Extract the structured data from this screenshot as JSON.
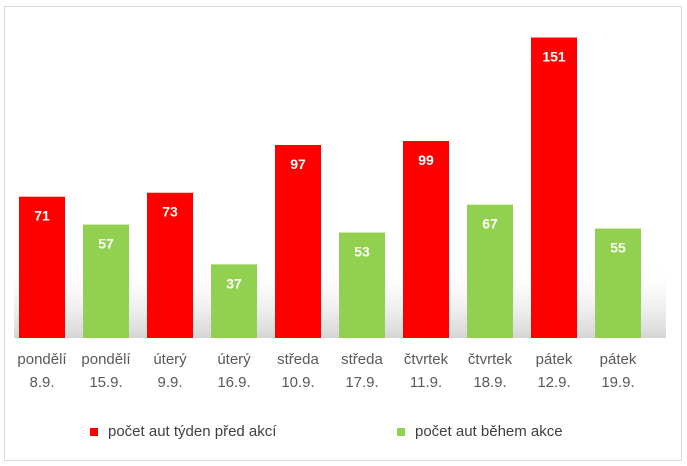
{
  "chart_data": {
    "type": "bar",
    "categories": [
      [
        "pondělí",
        "8.9."
      ],
      [
        "pondělí",
        "15.9."
      ],
      [
        "úterý",
        "9.9."
      ],
      [
        "úterý",
        "16.9."
      ],
      [
        "středa",
        "10.9."
      ],
      [
        "středa",
        "17.9."
      ],
      [
        "čtvrtek",
        "11.9."
      ],
      [
        "čtvrtek",
        "18.9."
      ],
      [
        "pátek",
        "12.9."
      ],
      [
        "pátek",
        "19.9."
      ]
    ],
    "values": [
      71,
      57,
      73,
      37,
      97,
      53,
      99,
      67,
      151,
      55
    ],
    "bar_series": [
      0,
      1,
      0,
      1,
      0,
      1,
      0,
      1,
      0,
      1
    ],
    "series": [
      {
        "name": "počet aut týden před akcí",
        "color": "#ff0000"
      },
      {
        "name": "počet aut během akce",
        "color": "#92d050"
      }
    ],
    "ylim": [
      0,
      160
    ],
    "grid": false,
    "legend_position": "bottom",
    "data_labels": true
  }
}
